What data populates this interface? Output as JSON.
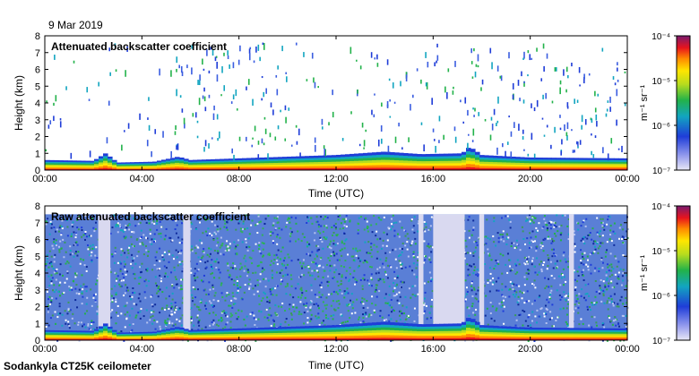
{
  "date_label": "9 Mar 2019",
  "footer": "Sodankyla CT25K ceilometer",
  "chart_data": [
    {
      "type": "heatmap",
      "title": "Attenuated backscatter coefficient",
      "xlabel": "Time (UTC)",
      "ylabel": "Height (km)",
      "x_ticks": [
        "00:00",
        "04:00",
        "08:00",
        "12:00",
        "16:00",
        "20:00",
        "00:00"
      ],
      "xlim_hours": [
        0,
        24
      ],
      "ylim_km": [
        0,
        8
      ],
      "y_ticks": [
        "0",
        "1",
        "2",
        "3",
        "4",
        "5",
        "6",
        "7",
        "8"
      ],
      "grid": false,
      "colorbar": {
        "scale": "log",
        "unit": "m⁻¹ sr⁻¹",
        "ticks": [
          "10⁻⁴",
          "10⁻⁵",
          "10⁻⁶",
          "10⁻⁷"
        ],
        "range": [
          1e-07,
          0.0001
        ]
      },
      "boundary_layer_top_km": [
        {
          "hour": 0,
          "top": 0.6
        },
        {
          "hour": 2,
          "top": 0.55
        },
        {
          "hour": 2.5,
          "top": 1.0
        },
        {
          "hour": 3,
          "top": 0.45
        },
        {
          "hour": 4.5,
          "top": 0.5
        },
        {
          "hour": 5.5,
          "top": 0.8
        },
        {
          "hour": 6,
          "top": 0.6
        },
        {
          "hour": 10,
          "top": 0.8
        },
        {
          "hour": 12,
          "top": 0.9
        },
        {
          "hour": 14,
          "top": 1.1
        },
        {
          "hour": 15.5,
          "top": 0.95
        },
        {
          "hour": 17.2,
          "top": 1.0
        },
        {
          "hour": 17.5,
          "top": 1.4
        },
        {
          "hour": 18,
          "top": 0.9
        },
        {
          "hour": 20,
          "top": 0.75
        },
        {
          "hour": 24,
          "top": 0.7
        }
      ]
    },
    {
      "type": "heatmap",
      "title": "Raw attenuated backscatter coefficient",
      "xlabel": "Time (UTC)",
      "ylabel": "Height (km)",
      "x_ticks": [
        "00:00",
        "04:00",
        "08:00",
        "12:00",
        "16:00",
        "20:00",
        "00:00"
      ],
      "xlim_hours": [
        0,
        24
      ],
      "ylim_km": [
        0,
        8
      ],
      "y_ticks": [
        "0",
        "1",
        "2",
        "3",
        "4",
        "5",
        "6",
        "7",
        "8"
      ],
      "grid": false,
      "colorbar": {
        "scale": "log",
        "unit": "m⁻¹ sr⁻¹",
        "ticks": [
          "10⁻⁴",
          "10⁻⁵",
          "10⁻⁶",
          "10⁻⁷"
        ],
        "range": [
          1e-07,
          0.0001
        ]
      },
      "low_signal_bands_hours": [
        [
          2.2,
          2.7
        ],
        [
          5.7,
          6.0
        ],
        [
          15.4,
          15.6
        ],
        [
          16.0,
          17.3
        ],
        [
          17.9,
          18.1
        ],
        [
          21.6,
          21.8
        ]
      ]
    }
  ]
}
